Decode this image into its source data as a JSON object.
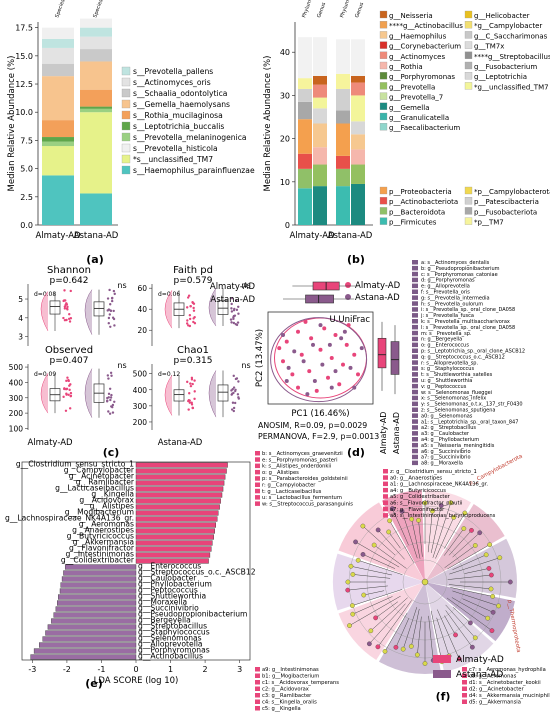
{
  "panel_labels": {
    "a": "(a)",
    "b": "(b)",
    "c": "(c)",
    "d": "(d)",
    "e": "(e)",
    "f": "(f)"
  },
  "group_names": [
    "Almaty-AD",
    "Astana-AD"
  ],
  "colors": {
    "almaty": "#e8457a",
    "astana": "#8a5a8c"
  },
  "chart_data": [
    {
      "panel": "a",
      "type": "bar",
      "stacked": true,
      "ylabel": "Median Relative Abundance (%)",
      "ylim": [
        0,
        18
      ],
      "yticks": [
        0.0,
        2.5,
        5.0,
        7.5,
        10.0,
        12.5,
        15.0,
        17.5
      ],
      "categories": [
        "Almaty-AD",
        "Astana-AD"
      ],
      "top_labels": [
        "Species",
        "Species"
      ],
      "series": [
        {
          "name": "s__Haemophilus_parainfluenzae",
          "color": "#4fc4bf",
          "values": [
            4.4,
            2.8
          ]
        },
        {
          "name": "*s__unclassified_TM7",
          "color": "#e6f28a",
          "values": [
            2.6,
            7.2
          ]
        },
        {
          "name": "s__Prevotella_melaninogenica",
          "color": "#9ad082",
          "values": [
            0.4,
            0.3
          ]
        },
        {
          "name": "s__Leptotrichia_buccalis",
          "color": "#5fa64a",
          "values": [
            0.4,
            0.2
          ]
        },
        {
          "name": "s__Rothia_mucilaginosa",
          "color": "#f3a05a",
          "values": [
            1.5,
            1.5
          ]
        },
        {
          "name": "s__Gemella_haemolysans",
          "color": "#f7c48e",
          "values": [
            3.9,
            2.5
          ]
        },
        {
          "name": "s__Schaalia_odontolytica",
          "color": "#c9c9c9",
          "values": [
            1.1,
            1.1
          ]
        },
        {
          "name": "s__Actinomyces_oris",
          "color": "#e3e3e3",
          "values": [
            1.4,
            1.1
          ]
        },
        {
          "name": "s__Prevotella_pallens",
          "color": "#bfe4e0",
          "values": [
            0.8,
            0.8
          ]
        },
        {
          "name": "s__Prevotella_histicola",
          "color": "#f0f0f0",
          "values": [
            1.0,
            0.8
          ]
        }
      ],
      "legend": [
        "s__Prevotella_pallens",
        "s__Actinomyces_oris",
        "s__Schaalia_odontolytica",
        "s__Gemella_haemolysans",
        "s__Rothia_mucilaginosa",
        "s__Leptotrichia_buccalis",
        "s__Prevotella_melaninogenica",
        "s__Prevotella_histicola",
        "*s__unclassified_TM7",
        "s__Haemophilus_parainfluenzae"
      ]
    },
    {
      "panel": "b",
      "type": "bar",
      "stacked": true,
      "ylabel": "Median Relative Abundance (%)",
      "ylim": [
        0,
        47
      ],
      "yticks": [
        0,
        10,
        20,
        30,
        40
      ],
      "categories": [
        "Almaty-AD",
        "Astana-AD"
      ],
      "top_labels": [
        "Phylum",
        "Genus",
        "Phylum",
        "Genus"
      ],
      "genus_legend": [
        "g__Neisseria",
        "****g__Actinobacillus",
        "g__Haemophilus",
        "g__Corynebacterium",
        "g__Actinomyces",
        "g__Rothia",
        "g__Porphyromonas",
        "g__Prevotella",
        "g__Prevotella_7",
        "g__Gemella",
        "g__Granulicatella",
        "g__Faecalibacterium",
        "g__Helicobacter",
        "*g__Campylobacter",
        "g__C_Saccharimonas",
        "g__TM7x",
        "****g__Streptobacillus",
        "g__Fusobacterium",
        "g__Leptotrichia",
        "*g__unclassified_TM7"
      ],
      "phylum_legend": [
        "p__Proteobacteria",
        "p__Actinobacteriota",
        "p__Bacteroidota",
        "p__Firmicutes",
        "*p__Campylobacterota",
        "p__Patescibacteria",
        "p__Fusobacteriota",
        "*p__TM7"
      ],
      "phylum_bars": {
        "Almaty-AD": [
          [
            "p__Firmicutes",
            8.5
          ],
          [
            "p__Bacteroidota",
            4.5
          ],
          [
            "p__Actinobacteriota",
            3.5
          ],
          [
            "p__Proteobacteria",
            8.0
          ],
          [
            "p__Fusobacteriota",
            4.0
          ],
          [
            "p__Patescibacteria",
            3.0
          ],
          [
            "*p__TM7",
            2.5
          ],
          [
            "other",
            9.5
          ]
        ],
        "Astana-AD": [
          [
            "p__Firmicutes",
            9.0
          ],
          [
            "p__Bacteroidota",
            4.0
          ],
          [
            "p__Actinobacteriota",
            3.0
          ],
          [
            "p__Proteobacteria",
            7.5
          ],
          [
            "p__Fusobacteriota",
            3.0
          ],
          [
            "p__Patescibacteria",
            5.0
          ],
          [
            "*p__TM7",
            3.5
          ],
          [
            "other",
            8.0
          ]
        ]
      },
      "genus_bars": {
        "Almaty-AD": [
          [
            "g__Gemella",
            9.0
          ],
          [
            "g__Prevotella",
            5.0
          ],
          [
            "g__Rothia",
            4.0
          ],
          [
            "g__Haemophilus",
            5.5
          ],
          [
            "g__Leptotrichia",
            3.5
          ],
          [
            "*g__unclassified_TM7",
            2.5
          ],
          [
            "g__Actinomyces",
            3.0
          ],
          [
            "g__Neisseria",
            2.0
          ],
          [
            "other",
            9.0
          ]
        ],
        "Astana-AD": [
          [
            "g__Gemella",
            9.5
          ],
          [
            "g__Prevotella",
            4.5
          ],
          [
            "g__Rothia",
            3.5
          ],
          [
            "g__Haemophilus",
            3.5
          ],
          [
            "g__Leptotrichia",
            3.0
          ],
          [
            "*g__unclassified_TM7",
            6.0
          ],
          [
            "g__Actinomyces",
            3.0
          ],
          [
            "g__Neisseria",
            1.5
          ],
          [
            "other",
            8.5
          ]
        ]
      }
    },
    {
      "panel": "c",
      "type": "scatter",
      "subtype": "raincloud-boxplot",
      "categories": [
        "Almaty-AD",
        "Astana-AD"
      ],
      "subplots": [
        {
          "title": "Shannon",
          "p": "p=0.642",
          "d": "d=0.08",
          "sig": "ns",
          "ylim": [
            2.5,
            5.8
          ],
          "yticks": [
            3,
            4,
            5
          ],
          "median": [
            4.6,
            4.5
          ],
          "q1": [
            4.2,
            4.1
          ],
          "q3": [
            4.9,
            4.85
          ],
          "min": [
            3.3,
            3.1
          ],
          "max": [
            5.4,
            5.5
          ]
        },
        {
          "title": "Faith pd",
          "p": "p=0.579",
          "d": "d=0.06",
          "sig": "ns",
          "ylim": [
            5,
            64
          ],
          "yticks": [
            20,
            40,
            60
          ],
          "median": [
            40,
            41
          ],
          "q1": [
            34,
            35
          ],
          "q3": [
            46,
            48
          ],
          "min": [
            22,
            24
          ],
          "max": [
            58,
            60
          ]
        },
        {
          "title": "Observed",
          "p": "p=0.407",
          "d": "d=0.09",
          "sig": "ns",
          "ylim": [
            90,
            520
          ],
          "yticks": [
            100,
            200,
            300,
            400,
            500
          ],
          "median": [
            320,
            330
          ],
          "q1": [
            280,
            270
          ],
          "q3": [
            360,
            390
          ],
          "min": [
            200,
            170
          ],
          "max": [
            460,
            490
          ]
        },
        {
          "title": "Chao1",
          "p": "p=0.315",
          "d": "d=0.12",
          "sig": "ns",
          "ylim": [
            150,
            560
          ],
          "yticks": [
            200,
            300,
            400,
            500
          ],
          "median": [
            370,
            385
          ],
          "q1": [
            330,
            330
          ],
          "q3": [
            400,
            430
          ],
          "min": [
            240,
            230
          ],
          "max": [
            490,
            520
          ]
        }
      ]
    },
    {
      "panel": "d",
      "type": "scatter",
      "title": "U.UniFrac",
      "xlabel": "PC1 (16.46%)",
      "ylabel": "PC2 (13.47%)",
      "legend": [
        "Almaty-AD",
        "Astana-AD"
      ],
      "stats": [
        "ANOSIM, R=0.09, p=0.0029",
        "PERMANOVA, F=2.9, p=0.0013"
      ],
      "almaty_points": [
        [
          -0.18,
          0.1
        ],
        [
          -0.12,
          0.16
        ],
        [
          -0.05,
          0.12
        ],
        [
          0.02,
          0.18
        ],
        [
          0.08,
          0.14
        ],
        [
          0.14,
          0.08
        ],
        [
          -0.2,
          -0.02
        ],
        [
          -0.1,
          0.02
        ],
        [
          0.0,
          0.05
        ],
        [
          0.06,
          0.0
        ],
        [
          0.12,
          -0.04
        ],
        [
          -0.15,
          -0.1
        ],
        [
          -0.06,
          -0.08
        ],
        [
          0.04,
          -0.12
        ],
        [
          0.1,
          -0.16
        ],
        [
          -0.02,
          -0.2
        ],
        [
          0.18,
          0.02
        ],
        [
          -0.22,
          0.06
        ],
        [
          0.2,
          -0.1
        ],
        [
          -0.08,
          0.22
        ],
        [
          0.15,
          0.2
        ],
        [
          -0.12,
          -0.18
        ]
      ],
      "astana_points": [
        [
          -0.14,
          0.04
        ],
        [
          -0.04,
          0.08
        ],
        [
          0.05,
          0.08
        ],
        [
          0.11,
          0.12
        ],
        [
          -0.17,
          -0.06
        ],
        [
          -0.09,
          -0.02
        ],
        [
          0.01,
          -0.04
        ],
        [
          0.08,
          -0.08
        ],
        [
          -0.03,
          -0.14
        ],
        [
          0.06,
          -0.18
        ],
        [
          0.16,
          -0.06
        ],
        [
          -0.2,
          0.14
        ],
        [
          0.22,
          0.06
        ],
        [
          -0.07,
          -0.22
        ],
        [
          0.13,
          0.16
        ],
        [
          0.0,
          0.2
        ],
        [
          -0.18,
          -0.14
        ],
        [
          0.18,
          -0.18
        ]
      ],
      "pc1_box": {
        "Almaty-AD": [
          -0.15,
          -0.04,
          0.03,
          0.1,
          0.2
        ],
        "Astana-AD": [
          -0.2,
          -0.08,
          -0.01,
          0.07,
          0.18
        ]
      },
      "pc2_box": {
        "Almaty-AD": [
          -0.2,
          -0.06,
          0.02,
          0.12,
          0.22
        ],
        "Astana-AD": [
          -0.22,
          -0.1,
          -0.01,
          0.1,
          0.2
        ]
      },
      "side_legend": [
        "a: s__Actinomyces_dentalis",
        "b: g__Pseudopropionibacterium",
        "c: s__Porphyromonas_catoniae",
        "d: g__Porphyromonas",
        "e: g__Alloprevotella",
        "f: s__Prevotella_oris",
        "g: s__Prevotella_intermedia",
        "h: s__Prevotella_oulorum",
        "i: s__Prevotella_sp._oral_clone_DA058",
        "j: s__Prevotella_fusca",
        "k: s__Prevotella_multisaccharivorax",
        "l: s__Prevotella_sp._oral_clone_DA058",
        "m: s__Prevotella_sp.",
        "n: g__Bergeyella",
        "o: g__Enterococcus",
        "p: s__Leptotrichia_sp._oral_clone_ASCB12",
        "q: g__Streptococcus_o.c._ASCB12",
        "r: s__Alloprevotella_sp.",
        "s: g__Staphylococcus",
        "t: s__Shuttleworthia_satelles",
        "u: g__Shuttleworthia",
        "v: g__Peptococcus",
        "w: s__Selenomonas_flueggei",
        "x: s__Selenomonas_infelix",
        "y: s__Selenomonas_o.t.x._137_str_F0430",
        "z: s__Selenomonas_sputigena",
        "a0: g__Selenomonas",
        "a1: s__Leptotrichia_sp._oral_taxon_847",
        "a2: g__Streptobacillus",
        "a3: g__Caulobacter",
        "a4: g__Phyllobacterium",
        "a5: s__Neisseria_meningitidis",
        "a6: g__Succinivibrio",
        "a7: g__Succinivibrio",
        "a8: g__Moraxella"
      ]
    },
    {
      "panel": "e",
      "type": "bar",
      "orientation": "horizontal",
      "xlabel": "LDA SCORE (log 10)",
      "xlim": [
        -3.3,
        3.3
      ],
      "xticks": [
        -3,
        -2,
        -1,
        0,
        1,
        2,
        3
      ],
      "categories": [
        "g__Clostridium_sensu_stricto_1",
        "g__Campylobacter",
        "g__Acinetobacter",
        "g__Ramlibacter",
        "g__Lacticaseibacillus",
        "g__Kingella",
        "g__Acidovorax",
        "g__Alistipes",
        "g__Mogibacterium",
        "g__Lachnospiraceae_NK4A136_gr.",
        "g__Aeromonas",
        "g__Anaerostipes",
        "g__Butyricicoccus",
        "g__Akkermansia",
        "g__Flavonifractor",
        "g__Intestinimonas",
        "g__Colidextribacter",
        "g__Enterococcus",
        "g__Streptococcus_o.c._ASCB12",
        "g__Caulobacter",
        "g__Phyllobacterium",
        "g__Peptococcus",
        "g__Shuttleworthia",
        "g__Moraxella",
        "g__Succinivibrio",
        "g__Pseudopropionibacterium",
        "g__Bergeyella",
        "g__Streptobacillus",
        "g__Staphylococcus",
        "g__Selenomonas",
        "g__Alloprevotella",
        "g__Porphyromonas",
        "g__Actinobacillus"
      ],
      "values": [
        2.65,
        2.62,
        2.58,
        2.55,
        2.52,
        2.49,
        2.45,
        2.42,
        2.38,
        2.35,
        2.31,
        2.28,
        2.25,
        2.21,
        2.18,
        2.14,
        2.1,
        -2.05,
        -2.1,
        -2.14,
        -2.18,
        -2.2,
        -2.25,
        -2.28,
        -2.32,
        -2.38,
        -2.45,
        -2.55,
        -2.62,
        -2.7,
        -2.8,
        -2.95,
        -3.05
      ]
    },
    {
      "panel": "f",
      "type": "other",
      "subtype": "cladogram",
      "legend": [
        "Almaty-AD",
        "Astana-AD"
      ],
      "clade_labels": [
        "p__Campylobacterota",
        "p__Thermoproteota",
        "c__Actinobacteria",
        "o__Lachnospirales",
        "f__Bacteroidales",
        "p__Firmicutes"
      ],
      "top_legend": [
        "b: s__Actinomyces_graevenitzii",
        "e: s__Porphyromonas_pasteri",
        "k: s__Alistipes_onderdonkii",
        "o: g__Alistipes",
        "p: s__Parabacteroides_goldsteinii",
        "r: g__Campylobacter",
        "t: g__Lacticaseibacillus",
        "u: s__Lactobacillus_fermentum",
        "w: s__Streptococcus_parasanguinis"
      ],
      "mid_legend": [
        "z: g__Clostridium_sensu_stricto_1",
        "a0: g__Anaerostipes",
        "a1: g__Lachnospiraceae_NK4A136_gr.",
        "a4: g__Butyricicoccus",
        "a5: g__Colidextribacter",
        "a6: s__Flavonifractor_plautii",
        "a7: g__Flavonifractor",
        "a8: s__Intestinimonas_butyriciproducens"
      ],
      "bottom_left_legend": [
        "a9: g__Intestinimonas",
        "b1: g__Mogibacterium",
        "c1: s__Acidovorax_temperans",
        "c2: g__Acidovorax",
        "c3: g__Ramlibacter",
        "c4: s__Kingella_oralis",
        "c5: g__Kingella"
      ],
      "bottom_right_legend": [
        "c7: s__Aeromonas_hydrophila",
        "c8: g__Aeromonas",
        "d1: s__Acinetobacter_kookii",
        "d2: g__Acinetobacter",
        "d4: s__Akkermansia_muciniphila",
        "d5: g__Akkermansia"
      ]
    }
  ]
}
